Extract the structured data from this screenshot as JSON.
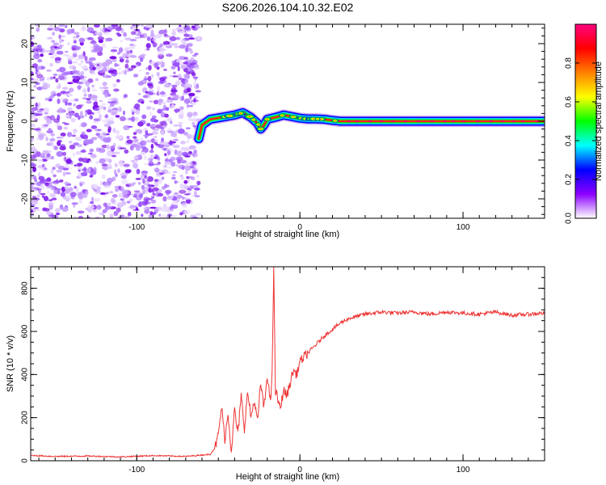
{
  "title": "S206.2026.104.10.32.E02",
  "chart_data": [
    {
      "type": "heatmap",
      "name": "spectrogram",
      "xlabel": "Height of straight line (km)",
      "ylabel": "Frequency (Hz)",
      "xlim": [
        -165,
        150
      ],
      "ylim": [
        -25,
        25
      ],
      "x_ticks": [
        -100,
        0,
        100
      ],
      "y_ticks": [
        -20,
        -10,
        0,
        10,
        20
      ],
      "noise_region_x": [
        -165,
        -62
      ],
      "signal_start_x": -62,
      "carrier_track": [
        {
          "x": -62,
          "freq": -4.5
        },
        {
          "x": -60,
          "freq": -1.0
        },
        {
          "x": -55,
          "freq": 0.5
        },
        {
          "x": -48,
          "freq": 1.0
        },
        {
          "x": -40,
          "freq": 1.6
        },
        {
          "x": -35,
          "freq": 2.2
        },
        {
          "x": -30,
          "freq": 1.0
        },
        {
          "x": -26,
          "freq": -0.5
        },
        {
          "x": -24,
          "freq": -2.0
        },
        {
          "x": -22,
          "freq": -1.0
        },
        {
          "x": -20,
          "freq": 0.5
        },
        {
          "x": -15,
          "freq": 1.0
        },
        {
          "x": -10,
          "freq": 1.6
        },
        {
          "x": -5,
          "freq": 1.2
        },
        {
          "x": 0,
          "freq": 0.8
        },
        {
          "x": 5,
          "freq": 0.6
        },
        {
          "x": 10,
          "freq": 0.6
        },
        {
          "x": 15,
          "freq": 0.5
        },
        {
          "x": 20,
          "freq": 0.2
        },
        {
          "x": 25,
          "freq": 0.0
        },
        {
          "x": 150,
          "freq": 0.0
        }
      ],
      "colorbar": {
        "label": "Normalized spectral amplitude",
        "range": [
          0,
          1
        ],
        "ticks": [
          0.0,
          0.2,
          0.4,
          0.6,
          0.8
        ],
        "tick_labels": [
          "0.0",
          "0.2",
          "0.4",
          "0.6",
          "0.8"
        ],
        "colors": [
          "#ffffff",
          "#8b00ff",
          "#0000ff",
          "#00ffff",
          "#00ff00",
          "#ffff00",
          "#ff8000",
          "#ff0000",
          "#ff0080"
        ]
      }
    },
    {
      "type": "line",
      "name": "snr",
      "xlabel": "Height of straight line (km)",
      "ylabel": "SNR (10 * v/v)",
      "xlim": [
        -165,
        150
      ],
      "ylim": [
        0,
        900
      ],
      "x_ticks": [
        -100,
        0,
        100
      ],
      "y_ticks": [
        0,
        200,
        400,
        600,
        800
      ],
      "line_color": "#ee3333",
      "series": [
        {
          "name": "SNR",
          "x": [
            -165,
            -150,
            -130,
            -110,
            -90,
            -70,
            -55,
            -52,
            -50,
            -48,
            -46,
            -44,
            -42,
            -40,
            -38,
            -36,
            -34,
            -32,
            -30,
            -28,
            -26,
            -24,
            -22,
            -20,
            -18,
            -17,
            -16,
            -15,
            -14,
            -12,
            -10,
            -8,
            -6,
            -4,
            -2,
            0,
            5,
            10,
            15,
            20,
            25,
            30,
            35,
            40,
            50,
            60,
            70,
            80,
            90,
            100,
            110,
            120,
            130,
            140,
            150
          ],
          "y": [
            25,
            20,
            22,
            18,
            24,
            20,
            30,
            60,
            120,
            250,
            100,
            220,
            40,
            240,
            120,
            300,
            150,
            320,
            200,
            280,
            180,
            360,
            240,
            400,
            260,
            420,
            900,
            320,
            300,
            240,
            330,
            300,
            360,
            420,
            400,
            460,
            500,
            540,
            580,
            610,
            640,
            660,
            670,
            680,
            690,
            685,
            690,
            680,
            690,
            685,
            680,
            690,
            675,
            680,
            685
          ]
        }
      ]
    }
  ]
}
